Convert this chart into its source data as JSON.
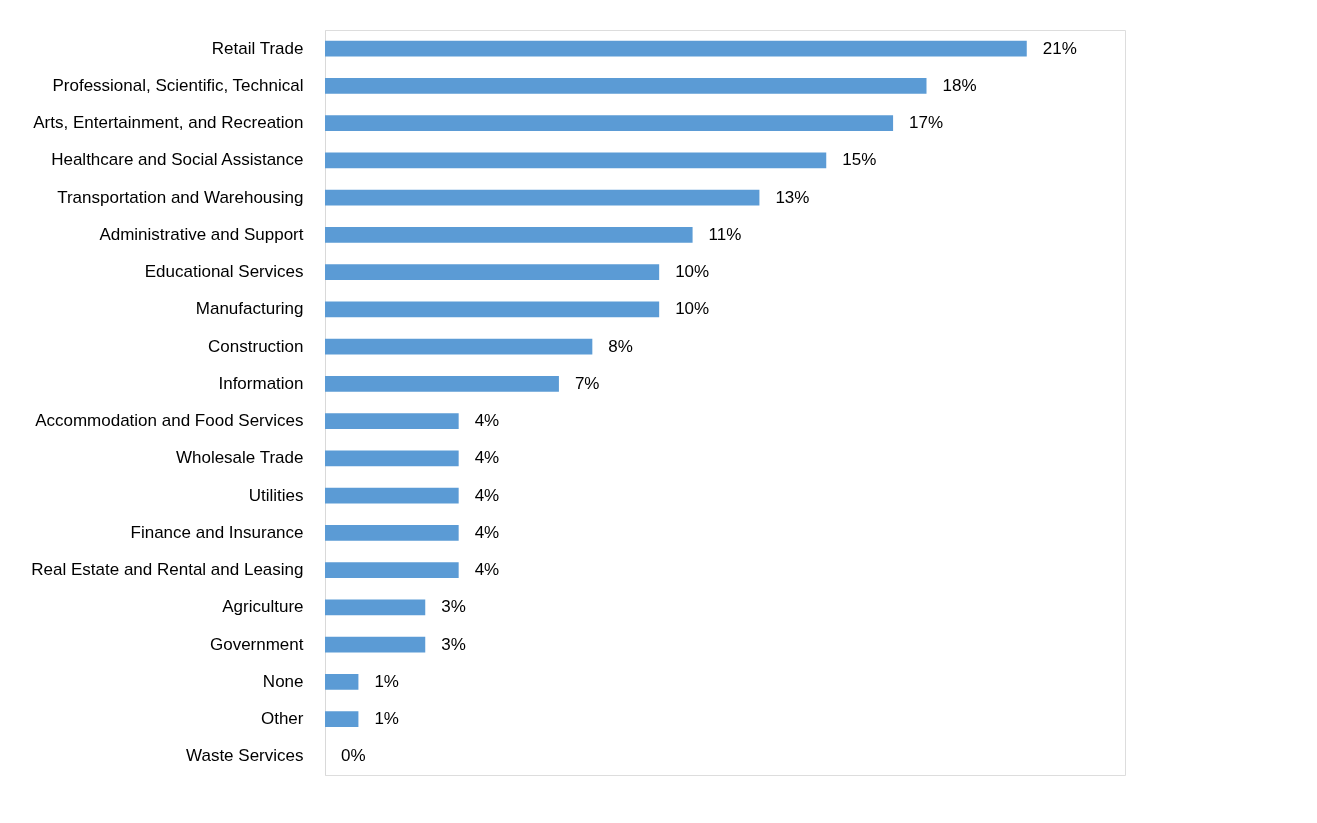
{
  "chart_data": {
    "type": "bar",
    "orientation": "horizontal",
    "color": "#5b9bd5",
    "categories": [
      "Retail Trade",
      "Professional, Scientific, Technical",
      "Arts, Entertainment, and Recreation",
      "Healthcare and Social Assistance",
      "Transportation and Warehousing",
      "Administrative and Support",
      "Educational Services",
      "Manufacturing",
      "Construction",
      "Information",
      "Accommodation and Food Services",
      "Wholesale Trade",
      "Utilities",
      "Finance and Insurance",
      "Real Estate and Rental and Leasing",
      "Agriculture",
      "Government",
      "None",
      "Other",
      "Waste Services"
    ],
    "values": [
      21,
      18,
      17,
      15,
      13,
      11,
      10,
      10,
      8,
      7,
      4,
      4,
      4,
      4,
      4,
      3,
      3,
      1,
      1,
      0
    ],
    "value_labels": [
      "21%",
      "18%",
      "17%",
      "15%",
      "13%",
      "11%",
      "10%",
      "10%",
      "8%",
      "7%",
      "4%",
      "4%",
      "4%",
      "4%",
      "4%",
      "3%",
      "3%",
      "1%",
      "1%",
      "0%"
    ],
    "grid": false
  }
}
